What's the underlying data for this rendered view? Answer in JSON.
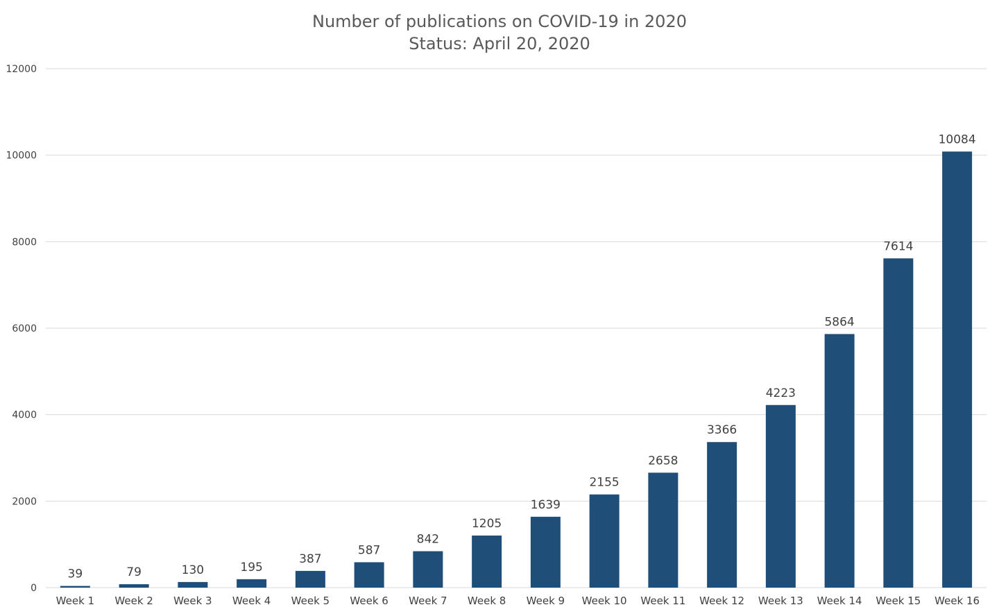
{
  "chart_data": {
    "type": "bar",
    "title": "Number of publications on COVID-19 in 2020",
    "subtitle": "Status: April 20, 2020",
    "xlabel": "",
    "ylabel": "",
    "categories": [
      "Week 1",
      "Week 2",
      "Week 3",
      "Week 4",
      "Week 5",
      "Week 6",
      "Week 7",
      "Week 8",
      "Week 9",
      "Week 10",
      "Week 11",
      "Week 12",
      "Week 13",
      "Week 14",
      "Week 15",
      "Week 16"
    ],
    "values": [
      39,
      79,
      130,
      195,
      387,
      587,
      842,
      1205,
      1639,
      2155,
      2658,
      3366,
      4223,
      5864,
      7614,
      10084
    ],
    "ylim": [
      0,
      12000
    ],
    "yticks": [
      0,
      2000,
      4000,
      6000,
      8000,
      10000,
      12000
    ],
    "grid": true,
    "legend": "none",
    "data_labels": true,
    "bar_color": "#1f4e79"
  }
}
